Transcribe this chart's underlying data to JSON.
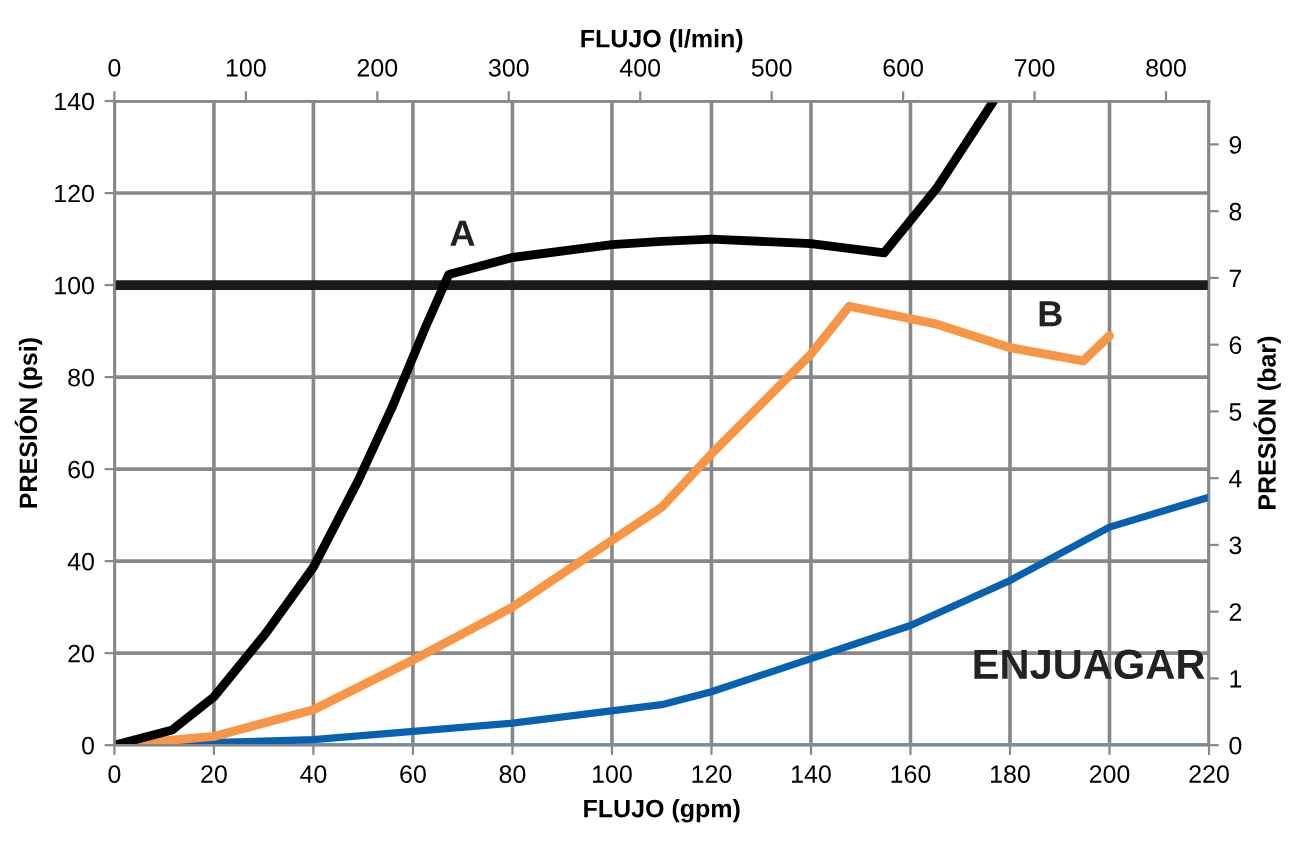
{
  "chart_data": {
    "type": "line",
    "xlabel": "FLUJO (gpm)",
    "ylabel": "PRESIÓN (psi)",
    "x2label": "FLUJO (l/min)",
    "y2label": "PRESIÓN (bar)",
    "xlim": [
      0,
      220
    ],
    "xticks": [
      0,
      20,
      40,
      60,
      80,
      100,
      120,
      140,
      160,
      180,
      200,
      220
    ],
    "ylim": [
      0,
      140
    ],
    "yticks": [
      0,
      20,
      40,
      60,
      80,
      100,
      120,
      140
    ],
    "x2lim": [
      0,
      832.7
    ],
    "x2ticks": [
      0,
      100,
      200,
      300,
      400,
      500,
      600,
      700,
      800
    ],
    "y2lim": [
      0,
      9.65
    ],
    "y2ticks": [
      0,
      1,
      2,
      3,
      4,
      5,
      6,
      7,
      8,
      9
    ],
    "grid": true,
    "line_style": "solid",
    "marker": "none",
    "series": [
      {
        "color": "#000000",
        "x": [
          0,
          11.6,
          20,
          30.4,
          40,
          49,
          55.8,
          62.5,
          67.2,
          80,
          100,
          110,
          120,
          140,
          154.7,
          165.3,
          176.7
        ],
        "values": [
          0,
          3.3,
          10.5,
          24.3,
          38.7,
          57.5,
          73.4,
          90.8,
          102.3,
          106,
          108.8,
          109.5,
          110,
          109,
          107,
          121.1,
          140
        ]
      },
      {
        "color": "#f79646",
        "x": [
          0,
          20,
          40,
          60,
          80,
          100,
          110,
          120,
          140,
          147.7,
          165.3,
          180,
          194.7,
          200
        ],
        "values": [
          0,
          1.9,
          7.7,
          18.5,
          30,
          44.5,
          51.7,
          63.3,
          85,
          95.4,
          91.5,
          86.4,
          83.5,
          89
        ]
      },
      {
        "color": "#0860b0",
        "x": [
          0,
          40,
          80,
          110,
          120,
          140,
          160,
          180,
          200,
          220
        ],
        "values": [
          0,
          1.2,
          4.8,
          8.8,
          11.6,
          18.8,
          26,
          35.8,
          47.4,
          53.9
        ]
      },
      {
        "color": "#5b9bd5",
        "x": [
          0,
          220
        ],
        "values": [
          0,
          0
        ]
      }
    ],
    "ref_lines": [
      {
        "axis": "y",
        "value": 100,
        "color": "#1a1a1a",
        "line_style": "solid"
      }
    ],
    "annotations": [
      "A",
      "B",
      "ENJUAGAR"
    ]
  }
}
